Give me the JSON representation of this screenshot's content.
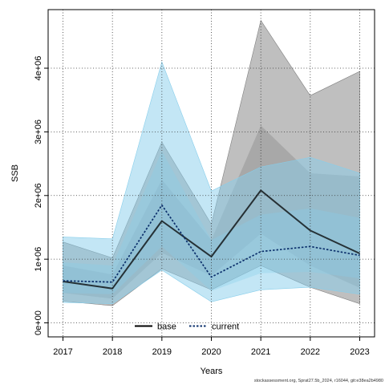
{
  "chart_data": {
    "type": "line",
    "title": "",
    "xlabel": "Years",
    "ylabel": "SSB",
    "x": [
      2017,
      2018,
      2019,
      2020,
      2021,
      2022,
      2023
    ],
    "x_tick_labels": [
      "2017",
      "2018",
      "2019",
      "2020",
      "2021",
      "2022",
      "2023"
    ],
    "y_ticks": [
      0,
      1000000,
      2000000,
      3000000,
      4000000
    ],
    "y_tick_labels": [
      "0e+00",
      "1e+06",
      "2e+06",
      "3e+06",
      "4e+06"
    ],
    "xlim": [
      2016.7,
      2023.3
    ],
    "ylim": [
      -220000,
      4920000
    ],
    "grid": true,
    "legend_position": "bottom-center",
    "series": [
      {
        "name": "base",
        "color": "#000000",
        "line_style": "solid",
        "band_color": "#7f7f7f",
        "values": [
          650000,
          540000,
          1600000,
          1040000,
          2080000,
          1450000,
          1090000
        ],
        "outer_band": {
          "upper": [
            1270000,
            1020000,
            2840000,
            1550000,
            4750000,
            3570000,
            3950000
          ],
          "lower": [
            340000,
            270000,
            850000,
            520000,
            900000,
            560000,
            300000
          ]
        },
        "inner_band": {
          "upper": [
            900000,
            760000,
            2250000,
            1300000,
            3100000,
            2350000,
            2300000
          ],
          "lower": [
            470000,
            380000,
            1100000,
            740000,
            1400000,
            900000,
            550000
          ]
        }
      },
      {
        "name": "current",
        "color": "#0b2f6b",
        "line_style": "dotted",
        "band_color": "#87ceeb",
        "values": [
          660000,
          640000,
          1850000,
          720000,
          1120000,
          1200000,
          1060000
        ],
        "outer_band": {
          "upper": [
            1350000,
            1320000,
            4100000,
            2070000,
            2450000,
            2600000,
            2350000
          ],
          "lower": [
            320000,
            300000,
            830000,
            330000,
            520000,
            560000,
            450000
          ]
        },
        "inner_band": {
          "upper": [
            950000,
            900000,
            2700000,
            1300000,
            1700000,
            1800000,
            1650000
          ],
          "lower": [
            470000,
            450000,
            1200000,
            500000,
            780000,
            800000,
            700000
          ]
        }
      }
    ]
  },
  "credit_text": "stockassessment.org, Sprat27.5b_2024, r16044, git:e38ea2b4980"
}
